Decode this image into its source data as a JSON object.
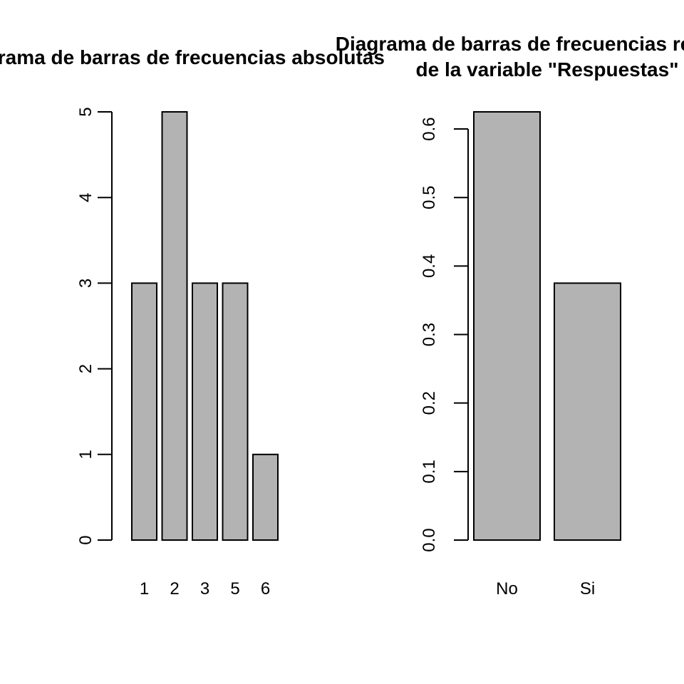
{
  "chart_data": [
    {
      "type": "bar",
      "title": "Diagrama de barras de frecuencias absolutas",
      "xlabel": "",
      "ylabel": "",
      "categories": [
        "1",
        "2",
        "3",
        "5",
        "6"
      ],
      "values": [
        3,
        5,
        3,
        3,
        1
      ],
      "ylim": [
        0,
        5
      ],
      "yticks": [
        0,
        1,
        2,
        3,
        4,
        5
      ],
      "ytick_labels": [
        "0",
        "1",
        "2",
        "3",
        "4",
        "5"
      ],
      "bar_color": "#b3b3b3",
      "grid": false
    },
    {
      "type": "bar",
      "title_lines": [
        "Diagrama de barras de frecuencias relativas",
        "de la variable \"Respuestas\""
      ],
      "xlabel": "",
      "ylabel": "",
      "categories": [
        "No",
        "Si"
      ],
      "values": [
        0.625,
        0.375
      ],
      "ylim": [
        0,
        0.625
      ],
      "yticks": [
        0,
        0.1,
        0.2,
        0.3,
        0.4,
        0.5,
        0.6
      ],
      "ytick_labels": [
        "0.0",
        "0.1",
        "0.2",
        "0.3",
        "0.4",
        "0.5",
        "0.6"
      ],
      "bar_color": "#b3b3b3",
      "grid": false
    }
  ]
}
